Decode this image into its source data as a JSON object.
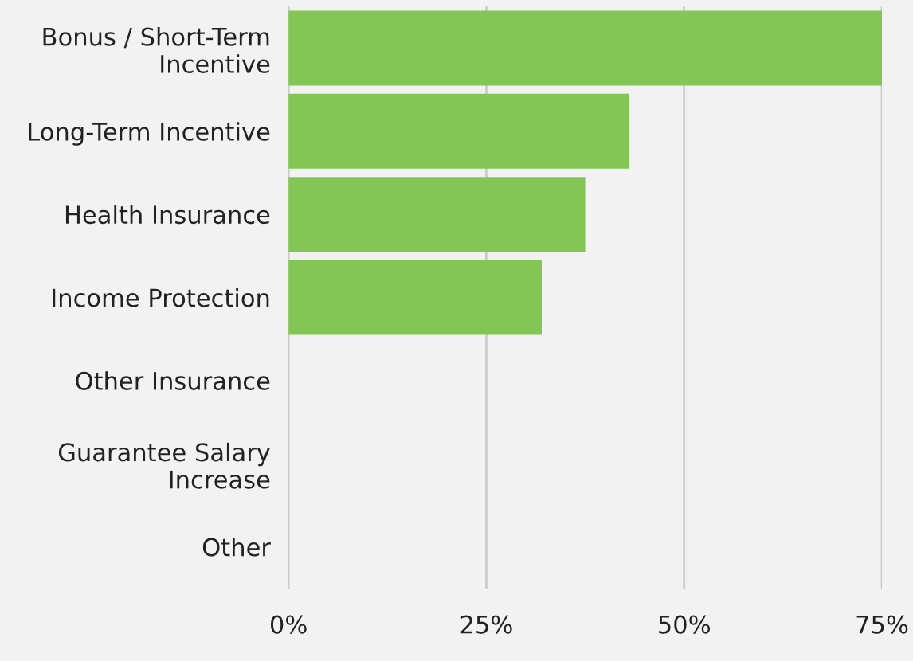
{
  "chart_data": {
    "type": "bar",
    "orientation": "horizontal",
    "categories": [
      "Bonus / Short-Term\nIncentive",
      "Long-Term Incentive",
      "Health Insurance",
      "Income Protection",
      "Other Insurance",
      "Guarantee Salary\nIncrease",
      "Other"
    ],
    "values": [
      75,
      43,
      37.5,
      32,
      0,
      0,
      0
    ],
    "color": "#84c655",
    "xlim": [
      0,
      75
    ],
    "xticks": [
      {
        "value": 0,
        "label": "0%"
      },
      {
        "value": 25,
        "label": "25%"
      },
      {
        "value": 50,
        "label": "50%"
      },
      {
        "value": 75,
        "label": "75%"
      }
    ],
    "grid": "x"
  }
}
